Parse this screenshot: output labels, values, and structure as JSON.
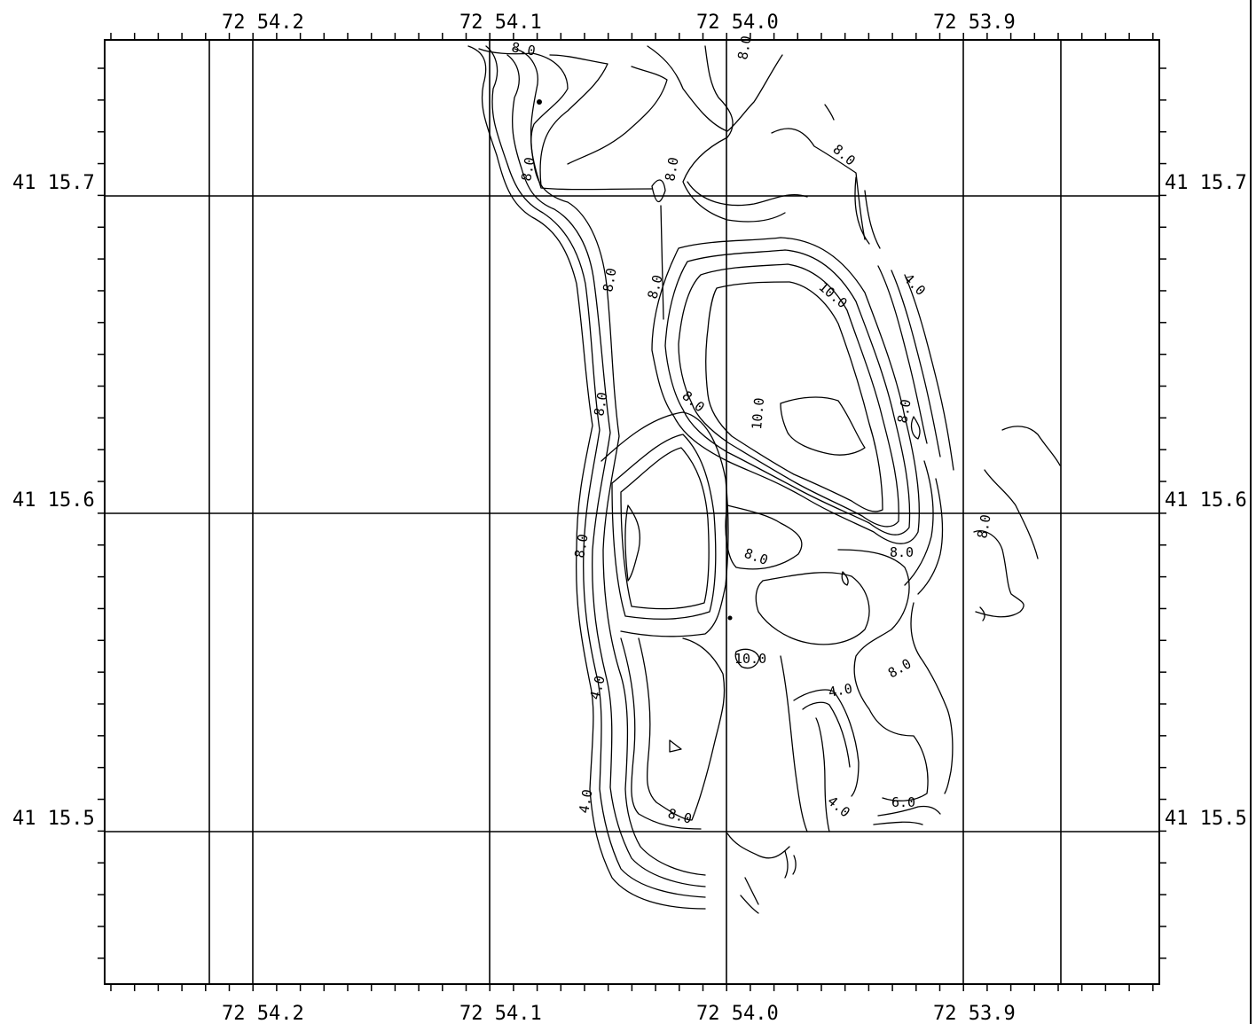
{
  "map": {
    "longitude_labels_top": [
      "72 54.2",
      "72 54.1",
      "72 54.0",
      "72 53.9"
    ],
    "longitude_labels_bottom": [
      "72 54.2",
      "72 54.1",
      "72 54.0",
      "72 53.9"
    ],
    "latitude_labels_left": [
      "41 15.7",
      "41 15.6",
      "41 15.5"
    ],
    "latitude_labels_right": [
      "41 15.7",
      "41 15.6",
      "41 15.5"
    ],
    "contour_labels": [
      "8.0",
      "8.0",
      "8.0",
      "8.0",
      "8.0",
      "4.0",
      "10.0",
      "8.0",
      "8.0",
      "10.0",
      "8.0",
      "8.0",
      "8.0",
      "8.0",
      "8.0",
      "8.0",
      "10.0",
      "4.0",
      "8.0",
      "4.0",
      "4.0",
      "8.0",
      "4.0",
      "6.0"
    ],
    "line_color": "#000000"
  }
}
